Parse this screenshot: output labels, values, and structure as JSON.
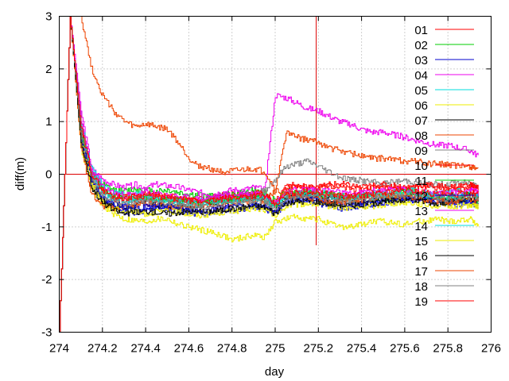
{
  "chart_data": {
    "type": "line",
    "xlabel": "day",
    "ylabel": "diff(m)",
    "xlim": [
      274,
      276
    ],
    "ylim": [
      -3,
      3
    ],
    "x_ticks": [
      "274",
      "274.2",
      "274.4",
      "274.6",
      "274.8",
      "275",
      "275.2",
      "275.4",
      "275.6",
      "275.8",
      "276"
    ],
    "y_ticks": [
      "-3",
      "-2",
      "-1",
      "0",
      "1",
      "2",
      "3"
    ],
    "grid": true,
    "legend_position": "top-right",
    "reference_lines": [
      {
        "orientation": "horizontal",
        "value": 0,
        "color": "#dd0000"
      },
      {
        "orientation": "vertical",
        "value": 275.19,
        "from": -1.35,
        "to": 3,
        "color": "#dd0000"
      }
    ],
    "x": [
      274.0,
      274.05,
      274.1,
      274.15,
      274.2,
      274.25,
      274.3,
      274.35,
      274.4,
      274.45,
      274.5,
      274.55,
      274.6,
      274.65,
      274.7,
      274.75,
      274.8,
      274.85,
      274.9,
      274.95,
      275.0,
      275.05,
      275.1,
      275.15,
      275.2,
      275.25,
      275.3,
      275.35,
      275.4,
      275.45,
      275.5,
      275.55,
      275.6,
      275.65,
      275.7,
      275.75,
      275.8,
      275.85,
      275.9,
      275.94
    ],
    "series": [
      {
        "name": "01",
        "color": "#ff0000",
        "values": [
          -3.0,
          3.0,
          1.0,
          0.0,
          -0.3,
          -0.45,
          -0.5,
          -0.52,
          -0.5,
          -0.48,
          -0.5,
          -0.52,
          -0.5,
          -0.48,
          -0.45,
          -0.4,
          -0.38,
          -0.4,
          -0.35,
          -0.38,
          -0.6,
          -0.25,
          -0.25,
          -0.22,
          -0.25,
          -0.2,
          -0.25,
          -0.28,
          -0.3,
          -0.25,
          -0.22,
          -0.25,
          -0.28,
          -0.25,
          -0.22,
          -0.25,
          -0.28,
          -0.26,
          -0.25,
          -0.3
        ]
      },
      {
        "name": "02",
        "color": "#00cc00",
        "values": [
          -3.0,
          3.0,
          0.9,
          0.0,
          -0.2,
          -0.3,
          -0.32,
          -0.28,
          -0.3,
          -0.32,
          -0.3,
          -0.35,
          -0.38,
          -0.4,
          -0.42,
          -0.4,
          -0.38,
          -0.35,
          -0.3,
          -0.35,
          -0.5,
          -0.3,
          -0.35,
          -0.38,
          -0.4,
          -0.42,
          -0.45,
          -0.42,
          -0.4,
          -0.45,
          -0.48,
          -0.42,
          -0.4,
          -0.38,
          -0.42,
          -0.45,
          -0.48,
          -0.5,
          -0.52,
          -0.55
        ]
      },
      {
        "name": "03",
        "color": "#0000cc",
        "values": [
          -3.0,
          3.0,
          0.6,
          -0.2,
          -0.5,
          -0.6,
          -0.7,
          -0.72,
          -0.7,
          -0.65,
          -0.65,
          -0.7,
          -0.72,
          -0.75,
          -0.72,
          -0.7,
          -0.68,
          -0.65,
          -0.62,
          -0.65,
          -0.75,
          -0.55,
          -0.5,
          -0.5,
          -0.55,
          -0.6,
          -0.65,
          -0.62,
          -0.6,
          -0.58,
          -0.55,
          -0.52,
          -0.5,
          -0.48,
          -0.5,
          -0.52,
          -0.55,
          -0.58,
          -0.55,
          -0.6
        ]
      },
      {
        "name": "04",
        "color": "#ee00ee",
        "values": [
          -3.0,
          3.0,
          1.2,
          0.1,
          -0.1,
          -0.2,
          -0.25,
          -0.2,
          -0.25,
          -0.2,
          -0.22,
          -0.25,
          -0.3,
          -0.35,
          -0.38,
          -0.35,
          -0.3,
          -0.3,
          -0.25,
          -0.3,
          1.5,
          1.45,
          1.35,
          1.25,
          1.2,
          1.1,
          1.0,
          0.95,
          0.85,
          0.8,
          0.8,
          0.75,
          0.7,
          0.65,
          0.6,
          0.55,
          0.55,
          0.5,
          0.45,
          0.35
        ]
      },
      {
        "name": "05",
        "color": "#00dddd",
        "values": [
          -3.0,
          3.0,
          1.0,
          0.1,
          -0.2,
          -0.35,
          -0.4,
          -0.38,
          -0.4,
          -0.42,
          -0.45,
          -0.48,
          -0.5,
          -0.52,
          -0.5,
          -0.48,
          -0.45,
          -0.45,
          -0.4,
          -0.42,
          -0.6,
          -0.4,
          -0.38,
          -0.35,
          -0.35,
          -0.38,
          -0.4,
          -0.42,
          -0.38,
          -0.35,
          -0.35,
          -0.32,
          -0.3,
          -0.32,
          -0.35,
          -0.38,
          -0.35,
          -0.32,
          -0.35,
          -0.4
        ]
      },
      {
        "name": "06",
        "color": "#eeee00",
        "values": [
          -3.0,
          3.0,
          0.5,
          -0.3,
          -0.6,
          -0.75,
          -0.85,
          -0.88,
          -0.9,
          -0.85,
          -0.85,
          -0.95,
          -1.0,
          -1.05,
          -1.1,
          -1.15,
          -1.25,
          -1.2,
          -1.15,
          -1.2,
          -0.9,
          -0.85,
          -0.8,
          -0.85,
          -0.85,
          -0.95,
          -1.0,
          -1.0,
          -0.95,
          -0.9,
          -0.9,
          -0.92,
          -0.95,
          -0.9,
          -0.88,
          -0.85,
          -0.9,
          -0.88,
          -0.85,
          -0.95
        ]
      },
      {
        "name": "07",
        "color": "#000000",
        "values": [
          -3.0,
          3.0,
          0.8,
          -0.1,
          -0.5,
          -0.6,
          -0.65,
          -0.6,
          -0.55,
          -0.6,
          -0.6,
          -0.62,
          -0.6,
          -0.58,
          -0.55,
          -0.55,
          -0.52,
          -0.5,
          -0.48,
          -0.5,
          -0.7,
          -0.45,
          -0.42,
          -0.4,
          -0.42,
          -0.45,
          -0.48,
          -0.5,
          -0.52,
          -0.5,
          -0.48,
          -0.45,
          -0.42,
          -0.4,
          -0.42,
          -0.45,
          -0.42,
          -0.4,
          -0.38,
          -0.4
        ]
      },
      {
        "name": "08",
        "color": "#ee4400",
        "values": [
          -3.0,
          3.0,
          0.5,
          -0.4,
          -0.6,
          -0.65,
          -0.6,
          -0.58,
          -0.55,
          -0.6,
          -0.62,
          -0.6,
          -0.58,
          -0.6,
          -0.62,
          -0.6,
          -0.55,
          -0.52,
          -0.5,
          -0.52,
          -0.3,
          0.8,
          0.7,
          0.65,
          0.6,
          0.5,
          0.45,
          0.4,
          0.35,
          0.3,
          0.3,
          0.28,
          0.25,
          0.25,
          0.2,
          0.2,
          0.18,
          0.15,
          0.15,
          0.12
        ]
      },
      {
        "name": "09",
        "color": "#808080",
        "values": [
          -3.0,
          3.0,
          0.7,
          -0.2,
          -0.4,
          -0.5,
          -0.55,
          -0.5,
          -0.45,
          -0.48,
          -0.5,
          -0.52,
          -0.55,
          -0.55,
          -0.5,
          -0.48,
          -0.45,
          -0.42,
          -0.4,
          -0.3,
          -0.1,
          0.15,
          0.2,
          0.25,
          0.15,
          0.05,
          -0.05,
          -0.1,
          -0.12,
          -0.15,
          -0.18,
          -0.15,
          -0.12,
          -0.15,
          -0.18,
          -0.2,
          -0.18,
          -0.15,
          -0.18,
          -0.2
        ]
      },
      {
        "name": "10",
        "color": "#ff0000",
        "values": [
          -3.0,
          3.0,
          0.9,
          0.0,
          -0.3,
          -0.4,
          -0.42,
          -0.4,
          -0.38,
          -0.4,
          -0.42,
          -0.45,
          -0.48,
          -0.5,
          -0.48,
          -0.45,
          -0.42,
          -0.4,
          -0.35,
          -0.38,
          -0.55,
          -0.2,
          -0.22,
          -0.25,
          -0.25,
          -0.2,
          -0.18,
          -0.22,
          -0.25,
          -0.22,
          -0.2,
          -0.22,
          -0.25,
          -0.22,
          -0.2,
          -0.22,
          -0.25,
          -0.22,
          -0.2,
          -0.25
        ]
      },
      {
        "name": "11",
        "color": "#00cc00",
        "values": [
          -3.0,
          3.0,
          0.8,
          0.0,
          -0.3,
          -0.42,
          -0.48,
          -0.45,
          -0.42,
          -0.45,
          -0.48,
          -0.5,
          -0.52,
          -0.55,
          -0.52,
          -0.5,
          -0.48,
          -0.45,
          -0.42,
          -0.45,
          -0.6,
          -0.38,
          -0.35,
          -0.32,
          -0.35,
          -0.38,
          -0.42,
          -0.45,
          -0.42,
          -0.4,
          -0.38,
          -0.35,
          -0.32,
          -0.35,
          -0.38,
          -0.42,
          -0.45,
          -0.42,
          -0.4,
          -0.45
        ]
      },
      {
        "name": "12",
        "color": "#0000cc",
        "values": [
          -3.0,
          3.0,
          0.7,
          -0.1,
          -0.45,
          -0.55,
          -0.62,
          -0.65,
          -0.62,
          -0.6,
          -0.62,
          -0.65,
          -0.68,
          -0.7,
          -0.68,
          -0.65,
          -0.62,
          -0.6,
          -0.58,
          -0.6,
          -0.7,
          -0.5,
          -0.48,
          -0.45,
          -0.48,
          -0.52,
          -0.55,
          -0.58,
          -0.55,
          -0.52,
          -0.5,
          -0.48,
          -0.45,
          -0.48,
          -0.5,
          -0.52,
          -0.55,
          -0.52,
          -0.5,
          -0.55
        ]
      },
      {
        "name": "13",
        "color": "#ee00ee",
        "values": [
          -3.0,
          3.0,
          1.0,
          0.05,
          -0.25,
          -0.35,
          -0.4,
          -0.38,
          -0.35,
          -0.38,
          -0.4,
          -0.42,
          -0.45,
          -0.48,
          -0.45,
          -0.42,
          -0.4,
          -0.38,
          -0.35,
          -0.38,
          -0.55,
          -0.32,
          -0.3,
          -0.28,
          -0.3,
          -0.32,
          -0.35,
          -0.38,
          -0.35,
          -0.32,
          -0.3,
          -0.28,
          -0.3,
          -0.32,
          -0.35,
          -0.38,
          -0.35,
          -0.32,
          -0.3,
          -0.35
        ]
      },
      {
        "name": "14",
        "color": "#00dddd",
        "values": [
          -3.0,
          3.0,
          0.9,
          0.0,
          -0.35,
          -0.45,
          -0.5,
          -0.48,
          -0.45,
          -0.48,
          -0.5,
          -0.52,
          -0.55,
          -0.58,
          -0.55,
          -0.52,
          -0.5,
          -0.48,
          -0.45,
          -0.48,
          -0.62,
          -0.42,
          -0.4,
          -0.38,
          -0.4,
          -0.42,
          -0.45,
          -0.48,
          -0.45,
          -0.42,
          -0.4,
          -0.38,
          -0.35,
          -0.38,
          -0.4,
          -0.42,
          -0.45,
          -0.42,
          -0.4,
          -0.42
        ]
      },
      {
        "name": "15",
        "color": "#eeee00",
        "values": [
          -3.0,
          3.0,
          0.6,
          -0.2,
          -0.55,
          -0.65,
          -0.7,
          -0.72,
          -0.75,
          -0.72,
          -0.7,
          -0.72,
          -0.75,
          -0.78,
          -0.75,
          -0.72,
          -0.7,
          -0.68,
          -0.65,
          -0.68,
          -0.8,
          -0.6,
          -0.58,
          -0.55,
          -0.58,
          -0.6,
          -0.62,
          -0.65,
          -0.62,
          -0.6,
          -0.58,
          -0.55,
          -0.52,
          -0.55,
          -0.58,
          -0.6,
          -0.62,
          -0.6,
          -0.58,
          -0.62
        ]
      },
      {
        "name": "16",
        "color": "#000000",
        "values": [
          -3.0,
          3.0,
          0.6,
          -0.25,
          -0.55,
          -0.68,
          -0.75,
          -0.72,
          -0.7,
          -0.72,
          -0.75,
          -0.72,
          -0.7,
          -0.72,
          -0.7,
          -0.68,
          -0.65,
          -0.62,
          -0.6,
          -0.62,
          -0.75,
          -0.55,
          -0.52,
          -0.5,
          -0.52,
          -0.55,
          -0.58,
          -0.6,
          -0.58,
          -0.55,
          -0.52,
          -0.5,
          -0.48,
          -0.5,
          -0.52,
          -0.55,
          -0.52,
          -0.5,
          -0.48,
          -0.52
        ]
      },
      {
        "name": "17",
        "color": "#ee4400",
        "values": [
          3.0,
          3.0,
          3.0,
          2.0,
          1.5,
          1.2,
          1.0,
          0.9,
          0.95,
          0.9,
          0.85,
          0.6,
          0.3,
          0.15,
          0.1,
          0.05,
          0.05,
          0.08,
          0.1,
          0.05,
          -0.3,
          -0.4,
          -0.42,
          -0.45,
          -0.48,
          -0.5,
          -0.52,
          -0.5,
          -0.48,
          -0.45,
          -0.42,
          -0.4,
          -0.42,
          -0.45,
          -0.48,
          -0.5,
          -0.52,
          -0.5,
          -0.48,
          -0.5
        ]
      },
      {
        "name": "18",
        "color": "#808080",
        "values": [
          -3.0,
          3.0,
          0.8,
          -0.05,
          -0.4,
          -0.5,
          -0.55,
          -0.52,
          -0.5,
          -0.52,
          -0.55,
          -0.58,
          -0.6,
          -0.62,
          -0.6,
          -0.58,
          -0.55,
          -0.52,
          -0.5,
          -0.52,
          -0.65,
          -0.45,
          -0.42,
          -0.4,
          -0.42,
          -0.45,
          -0.48,
          -0.5,
          -0.48,
          -0.45,
          -0.42,
          -0.4,
          -0.38,
          -0.4,
          -0.42,
          -0.45,
          -0.48,
          -0.45,
          -0.42,
          -0.45
        ]
      },
      {
        "name": "19",
        "color": "#ff0000",
        "values": [
          -3.0,
          3.0,
          0.9,
          0.0,
          -0.3,
          -0.42,
          -0.45,
          -0.42,
          -0.4,
          -0.42,
          -0.45,
          -0.48,
          -0.5,
          -0.52,
          -0.5,
          -0.48,
          -0.45,
          -0.42,
          -0.4,
          -0.42,
          -0.58,
          -0.38,
          -0.35,
          -0.32,
          -0.35,
          -0.38,
          -0.4,
          -0.42,
          -0.4,
          -0.38,
          -0.35,
          -0.32,
          -0.3,
          -0.32,
          -0.35,
          -0.38,
          -0.4,
          -0.38,
          -0.35,
          -0.38
        ]
      }
    ]
  }
}
